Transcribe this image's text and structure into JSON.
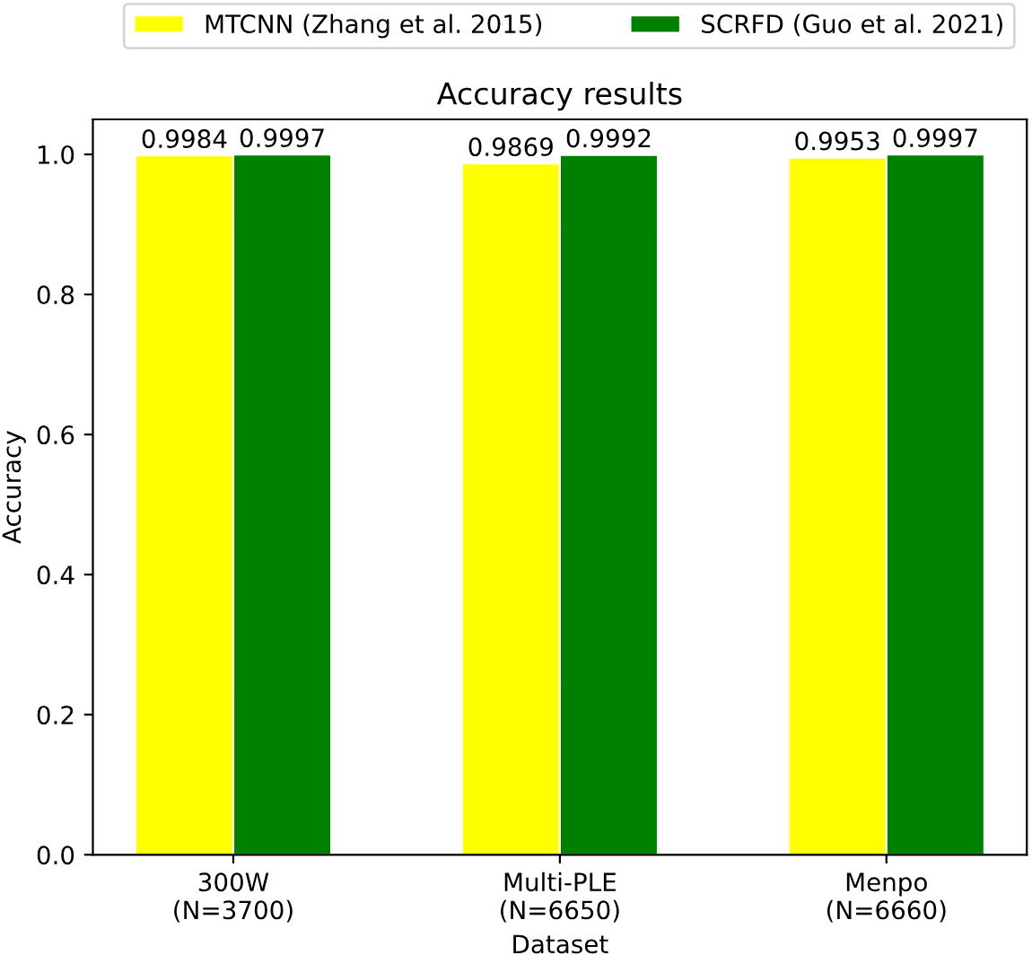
{
  "chart_data": {
    "type": "bar",
    "title": "Accuracy results",
    "xlabel": "Dataset",
    "ylabel": "Accuracy",
    "categories": [
      "300W\n(N=3700)",
      "Multi-PLE\n(N=6650)",
      "Menpo\n(N=6660)"
    ],
    "series": [
      {
        "name": "MTCNN (Zhang et al. 2015)",
        "color": "#ffff00",
        "values": [
          0.9984,
          0.9869,
          0.9953
        ]
      },
      {
        "name": "SCRFD (Guo et al. 2021)",
        "color": "#008000",
        "values": [
          0.9997,
          0.9992,
          0.9997
        ]
      }
    ],
    "ylim": [
      0,
      1.05
    ],
    "yticks": [
      {
        "value": 0,
        "label": "0.0"
      },
      0.2,
      0.4,
      0.6,
      0.8,
      {
        "value": 1,
        "label": "1.0"
      }
    ],
    "data_labels": true,
    "legend": "top",
    "grid": false
  }
}
